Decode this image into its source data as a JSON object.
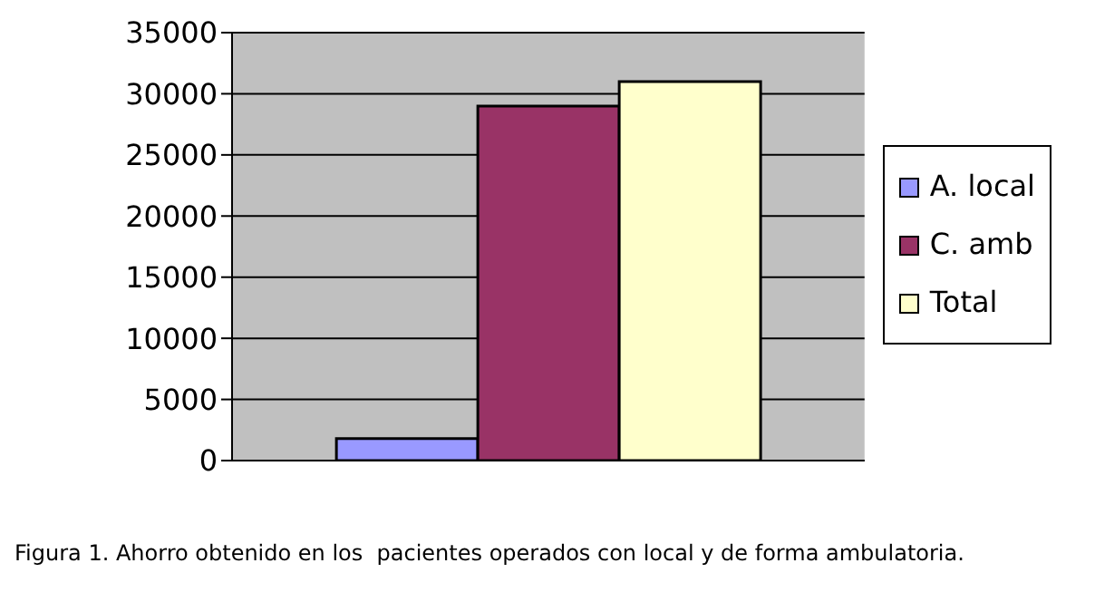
{
  "chart_data": {
    "type": "bar",
    "categories": [
      null
    ],
    "series": [
      {
        "name": "A. local",
        "color": "#9999ff",
        "values": [
          1800
        ]
      },
      {
        "name": "C. amb",
        "color": "#993366",
        "values": [
          29000
        ]
      },
      {
        "name": "Total",
        "color": "#ffffcc",
        "values": [
          31000
        ]
      }
    ],
    "ylim": [
      0,
      35000
    ],
    "yticks": [
      0,
      5000,
      10000,
      15000,
      20000,
      25000,
      30000,
      35000
    ],
    "grid": "y",
    "legend": "right",
    "annotations": [
      "Figura 1. Ahorro obtenido en los  pacientes operados con local y de forma ambulatoria."
    ]
  }
}
